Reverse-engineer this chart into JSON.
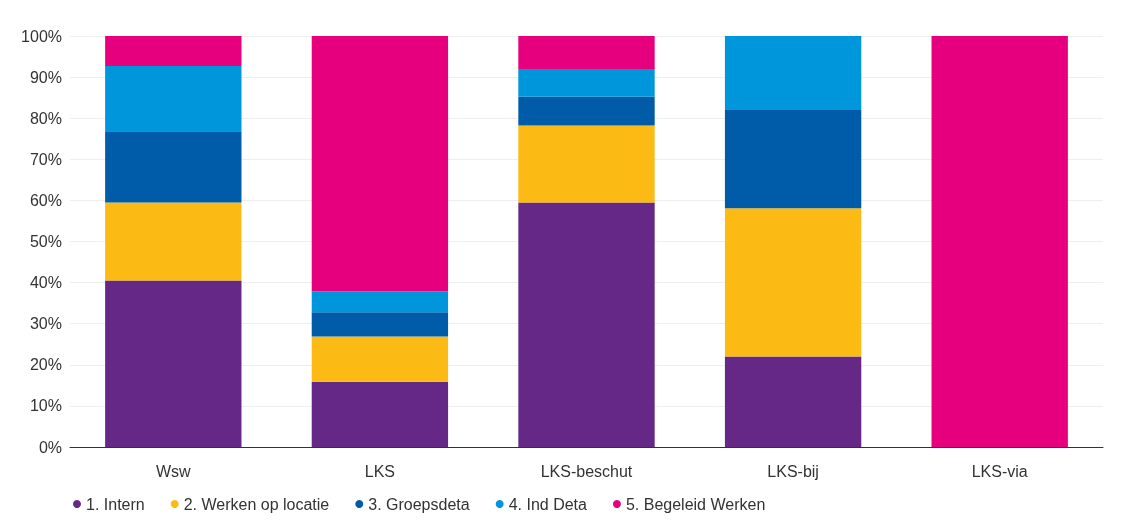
{
  "chart_data": {
    "type": "bar",
    "stacked": true,
    "categories": [
      "Wsw",
      "LKS",
      "LKS-beschut",
      "LKS-bij",
      "LKS-via"
    ],
    "series": [
      {
        "name": "1. Intern",
        "color": "#662886",
        "values": [
          40.5,
          15.9,
          59.5,
          22,
          0
        ]
      },
      {
        "name": "2. Werken op locatie",
        "color": "#fbbb14",
        "values": [
          19,
          11,
          18.7,
          36.1,
          0
        ]
      },
      {
        "name": "3. Groepsdeta",
        "color": "#005ca9",
        "values": [
          17.3,
          5.9,
          7,
          23.9,
          0
        ]
      },
      {
        "name": "4. Ind Deta",
        "color": "#0096db",
        "values": [
          15.9,
          5.1,
          6.8,
          18,
          0
        ]
      },
      {
        "name": "5. Begeleid Werken",
        "color": "#e6007e",
        "values": [
          7.3,
          62.1,
          8,
          0,
          100
        ]
      }
    ],
    "ylim": [
      0,
      100
    ],
    "yticks": [
      {
        "value": 0,
        "label": "0%"
      },
      {
        "value": 10,
        "label": "10%"
      },
      {
        "value": 20,
        "label": "20%"
      },
      {
        "value": 30,
        "label": "30%"
      },
      {
        "value": 40,
        "label": "40%"
      },
      {
        "value": 50,
        "label": "50%"
      },
      {
        "value": 60,
        "label": "60%"
      },
      {
        "value": 70,
        "label": "70%"
      },
      {
        "value": 80,
        "label": "80%"
      },
      {
        "value": 90,
        "label": "90%"
      },
      {
        "value": 100,
        "label": "100%"
      }
    ],
    "grid": "y",
    "legend": "bottom left"
  }
}
